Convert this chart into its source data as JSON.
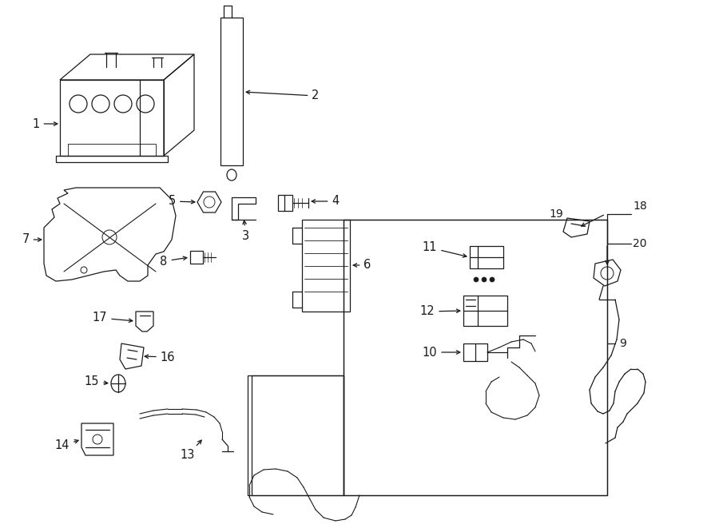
{
  "bg_color": "#ffffff",
  "line_color": "#1a1a1a",
  "fig_width": 9.0,
  "fig_height": 6.61,
  "dpi": 100,
  "font_size_label": 10,
  "lw": 0.9
}
